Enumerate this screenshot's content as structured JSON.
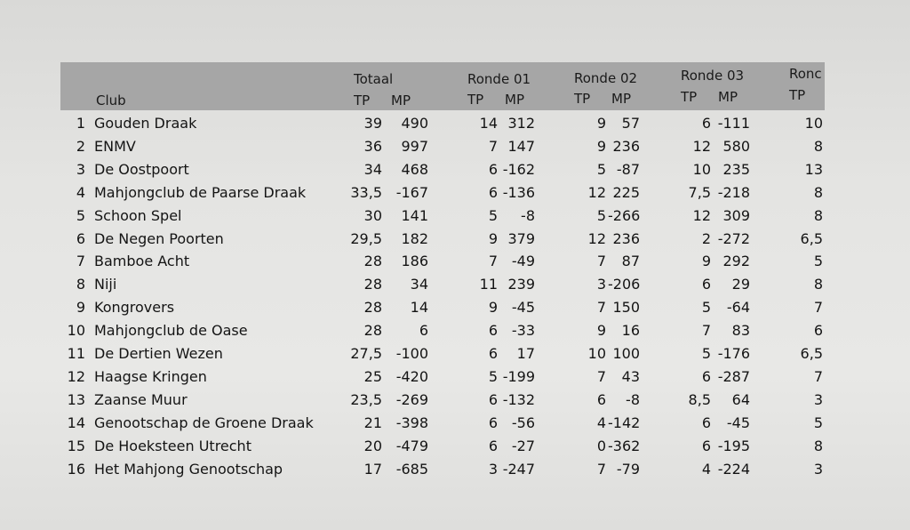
{
  "header": {
    "totaal": "Totaal",
    "ronde01": "Ronde 01",
    "ronde02": "Ronde 02",
    "ronde03": "Ronde 03",
    "ronde04_partial": "Ronc",
    "club": "Club",
    "tp": "TP",
    "mp": "MP"
  },
  "rows": [
    {
      "rank": "1",
      "club": "Gouden Draak",
      "tot_tp": "39",
      "tot_mp": "490",
      "r1_tp": "14",
      "r1_mp": "312",
      "r2_tp": "9",
      "r2_mp": "57",
      "r3_tp": "6",
      "r3_mp": "-111",
      "r4_tp": "10"
    },
    {
      "rank": "2",
      "club": "ENMV",
      "tot_tp": "36",
      "tot_mp": "997",
      "r1_tp": "7",
      "r1_mp": "147",
      "r2_tp": "9",
      "r2_mp": "236",
      "r3_tp": "12",
      "r3_mp": "580",
      "r4_tp": "8"
    },
    {
      "rank": "3",
      "club": "De Oostpoort",
      "tot_tp": "34",
      "tot_mp": "468",
      "r1_tp": "6",
      "r1_mp": "-162",
      "r2_tp": "5",
      "r2_mp": "-87",
      "r3_tp": "10",
      "r3_mp": "235",
      "r4_tp": "13"
    },
    {
      "rank": "4",
      "club": "Mahjongclub de Paarse Draak",
      "tot_tp": "33,5",
      "tot_mp": "-167",
      "r1_tp": "6",
      "r1_mp": "-136",
      "r2_tp": "12",
      "r2_mp": "225",
      "r3_tp": "7,5",
      "r3_mp": "-218",
      "r4_tp": "8"
    },
    {
      "rank": "5",
      "club": "Schoon Spel",
      "tot_tp": "30",
      "tot_mp": "141",
      "r1_tp": "5",
      "r1_mp": "-8",
      "r2_tp": "5",
      "r2_mp": "-266",
      "r3_tp": "12",
      "r3_mp": "309",
      "r4_tp": "8"
    },
    {
      "rank": "6",
      "club": "De Negen Poorten",
      "tot_tp": "29,5",
      "tot_mp": "182",
      "r1_tp": "9",
      "r1_mp": "379",
      "r2_tp": "12",
      "r2_mp": "236",
      "r3_tp": "2",
      "r3_mp": "-272",
      "r4_tp": "6,5"
    },
    {
      "rank": "7",
      "club": "Bamboe Acht",
      "tot_tp": "28",
      "tot_mp": "186",
      "r1_tp": "7",
      "r1_mp": "-49",
      "r2_tp": "7",
      "r2_mp": "87",
      "r3_tp": "9",
      "r3_mp": "292",
      "r4_tp": "5"
    },
    {
      "rank": "8",
      "club": "Niji",
      "tot_tp": "28",
      "tot_mp": "34",
      "r1_tp": "11",
      "r1_mp": "239",
      "r2_tp": "3",
      "r2_mp": "-206",
      "r3_tp": "6",
      "r3_mp": "29",
      "r4_tp": "8"
    },
    {
      "rank": "9",
      "club": "Kongrovers",
      "tot_tp": "28",
      "tot_mp": "14",
      "r1_tp": "9",
      "r1_mp": "-45",
      "r2_tp": "7",
      "r2_mp": "150",
      "r3_tp": "5",
      "r3_mp": "-64",
      "r4_tp": "7"
    },
    {
      "rank": "10",
      "club": "Mahjongclub de Oase",
      "tot_tp": "28",
      "tot_mp": "6",
      "r1_tp": "6",
      "r1_mp": "-33",
      "r2_tp": "9",
      "r2_mp": "16",
      "r3_tp": "7",
      "r3_mp": "83",
      "r4_tp": "6"
    },
    {
      "rank": "11",
      "club": "De Dertien Wezen",
      "tot_tp": "27,5",
      "tot_mp": "-100",
      "r1_tp": "6",
      "r1_mp": "17",
      "r2_tp": "10",
      "r2_mp": "100",
      "r3_tp": "5",
      "r3_mp": "-176",
      "r4_tp": "6,5"
    },
    {
      "rank": "12",
      "club": "Haagse Kringen",
      "tot_tp": "25",
      "tot_mp": "-420",
      "r1_tp": "5",
      "r1_mp": "-199",
      "r2_tp": "7",
      "r2_mp": "43",
      "r3_tp": "6",
      "r3_mp": "-287",
      "r4_tp": "7"
    },
    {
      "rank": "13",
      "club": "Zaanse Muur",
      "tot_tp": "23,5",
      "tot_mp": "-269",
      "r1_tp": "6",
      "r1_mp": "-132",
      "r2_tp": "6",
      "r2_mp": "-8",
      "r3_tp": "8,5",
      "r3_mp": "64",
      "r4_tp": "3"
    },
    {
      "rank": "14",
      "club": "Genootschap de Groene Draak",
      "tot_tp": "21",
      "tot_mp": "-398",
      "r1_tp": "6",
      "r1_mp": "-56",
      "r2_tp": "4",
      "r2_mp": "-142",
      "r3_tp": "6",
      "r3_mp": "-45",
      "r4_tp": "5"
    },
    {
      "rank": "15",
      "club": "De Hoeksteen Utrecht",
      "tot_tp": "20",
      "tot_mp": "-479",
      "r1_tp": "6",
      "r1_mp": "-27",
      "r2_tp": "0",
      "r2_mp": "-362",
      "r3_tp": "6",
      "r3_mp": "-195",
      "r4_tp": "8"
    },
    {
      "rank": "16",
      "club": "Het Mahjong Genootschap",
      "tot_tp": "17",
      "tot_mp": "-685",
      "r1_tp": "3",
      "r1_mp": "-247",
      "r2_tp": "7",
      "r2_mp": "-79",
      "r3_tp": "4",
      "r3_mp": "-224",
      "r4_tp": "3"
    }
  ]
}
